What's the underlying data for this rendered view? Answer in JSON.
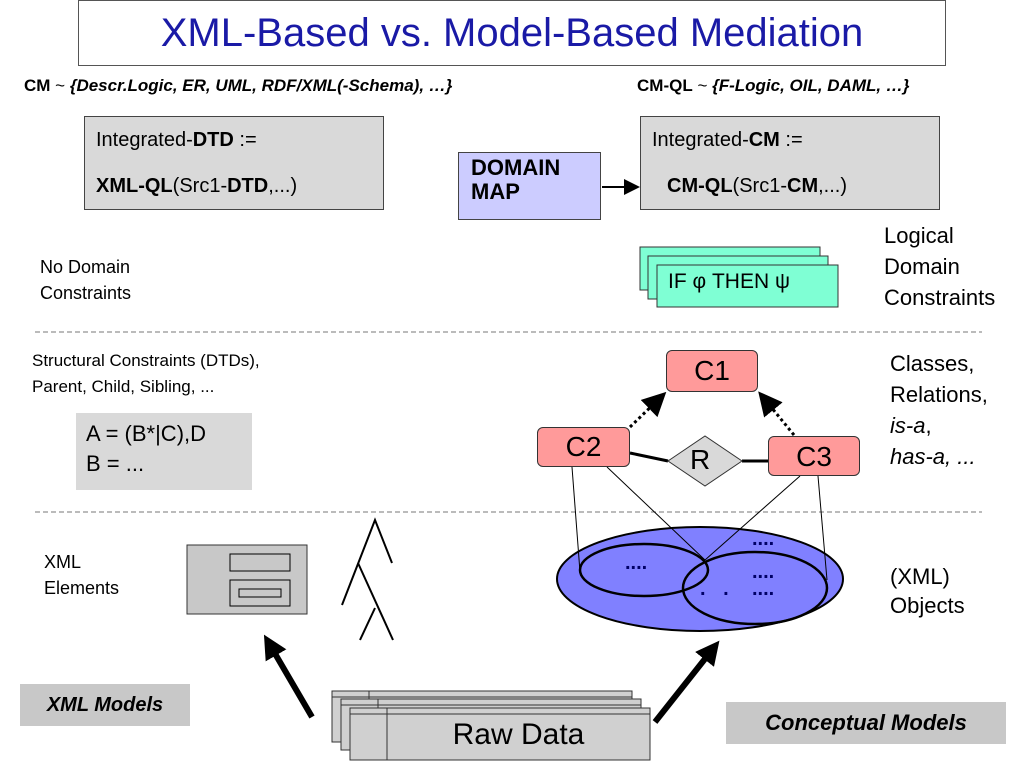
{
  "title": "XML-Based vs. Model-Based Mediation",
  "header_left": {
    "prefix": "CM",
    "tilde": " ~ ",
    "set": "{Descr.Logic, ER, UML, RDF/XML(-Schema), …}"
  },
  "header_right": {
    "prefix": "CM-QL",
    "tilde": " ~ ",
    "set": "{F-Logic, OIL, DAML, …}"
  },
  "integrated_dtd": {
    "l1a": "Integrated-",
    "l1b": "DTD",
    "l1c": " :=",
    "l2a": "XML-QL",
    "l2b": "(Src1-",
    "l2c": "DTD",
    "l2d": ",...)"
  },
  "integrated_cm": {
    "l1a": "Integrated-",
    "l1b": "CM",
    "l1c": " :=",
    "l2a": "CM-QL",
    "l2b": "(Src1-",
    "l2c": "CM",
    "l2d": ",...)"
  },
  "domain_map": {
    "l1": "DOMAIN",
    "l2": "MAP"
  },
  "no_domain": {
    "l1": "No Domain",
    "l2": "Constraints"
  },
  "logical_domain": {
    "l1": "Logical",
    "l2": "Domain",
    "l3": "Constraints"
  },
  "rule": "IF φ THEN ψ",
  "structural": {
    "l1": "Structural Constraints (DTDs),",
    "l2": "Parent, Child, Sibling, ..."
  },
  "dtd_rules": {
    "l1": "A = (B*|C),D",
    "l2": "B = ..."
  },
  "classes": {
    "l1": "Classes,",
    "l2": "Relations,",
    "l3": "is-a",
    "l3b": ",",
    "l4": "has-a, ..."
  },
  "nodes": {
    "c1": "C1",
    "c2": "C2",
    "c3": "C3",
    "r": "R"
  },
  "objects_dots": {
    "a": "....",
    "b": "....",
    "c": "....",
    "d": ". ."
  },
  "xml_elements": {
    "l1": "XML",
    "l2": "Elements"
  },
  "xml_objects": {
    "l1": "(XML)",
    "l2": "Objects"
  },
  "xml_models": "XML Models",
  "conceptual_models": "Conceptual Models",
  "raw_data": "Raw Data",
  "colors": {
    "title": "#1a1aa6",
    "class_node": "#ff9a9a",
    "rule_card": "#7fffd4",
    "domain_map": "#ccccff",
    "objects": "#8080ff",
    "gray": "#d9d9d9"
  }
}
